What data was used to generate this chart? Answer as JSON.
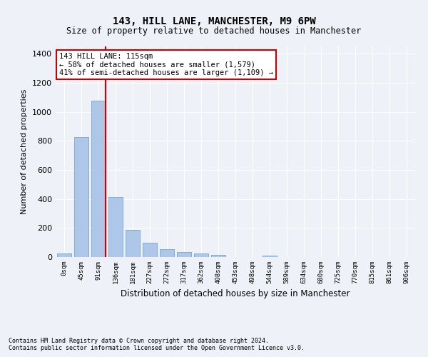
{
  "title": "143, HILL LANE, MANCHESTER, M9 6PW",
  "subtitle": "Size of property relative to detached houses in Manchester",
  "xlabel": "Distribution of detached houses by size in Manchester",
  "ylabel": "Number of detached properties",
  "footnote1": "Contains HM Land Registry data © Crown copyright and database right 2024.",
  "footnote2": "Contains public sector information licensed under the Open Government Licence v3.0.",
  "bar_color": "#aec6e8",
  "bar_edge_color": "#7aafd4",
  "background_color": "#eef2f8",
  "grid_color": "#ffffff",
  "vline_color": "#cc0000",
  "vline_x": 2.4,
  "annotation_text": "143 HILL LANE: 115sqm\n← 58% of detached houses are smaller (1,579)\n41% of semi-detached houses are larger (1,109) →",
  "annotation_box_facecolor": "#ffffff",
  "annotation_box_edgecolor": "#cc0000",
  "categories": [
    "0sqm",
    "45sqm",
    "91sqm",
    "136sqm",
    "181sqm",
    "227sqm",
    "272sqm",
    "317sqm",
    "362sqm",
    "408sqm",
    "453sqm",
    "498sqm",
    "544sqm",
    "589sqm",
    "634sqm",
    "680sqm",
    "725sqm",
    "770sqm",
    "815sqm",
    "861sqm",
    "906sqm"
  ],
  "values": [
    25,
    825,
    1075,
    415,
    185,
    100,
    55,
    35,
    25,
    15,
    0,
    0,
    12,
    0,
    0,
    0,
    0,
    0,
    0,
    0,
    0
  ],
  "ylim": [
    0,
    1450
  ],
  "yticks": [
    0,
    200,
    400,
    600,
    800,
    1000,
    1200,
    1400
  ],
  "figsize": [
    6.0,
    5.0
  ],
  "dpi": 100,
  "title_fontsize": 10,
  "subtitle_fontsize": 8.5,
  "xlabel_fontsize": 8.5,
  "ylabel_fontsize": 8,
  "xtick_fontsize": 6.5,
  "ytick_fontsize": 8,
  "annotation_fontsize": 7.5,
  "footnote_fontsize": 6
}
